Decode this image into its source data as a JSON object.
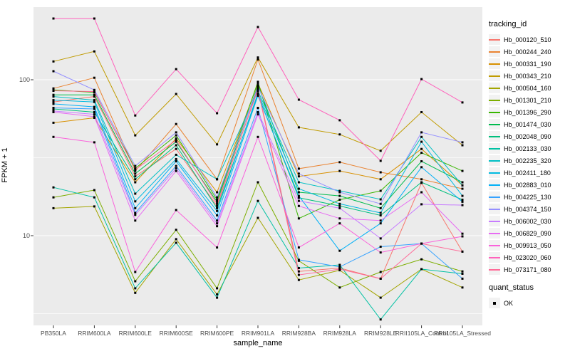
{
  "axes": {
    "ylabel": "FPKM + 1",
    "xlabel": "sample_name",
    "y_ticks": [
      {
        "label": "100",
        "value": 100
      },
      {
        "label": "10",
        "value": 10
      }
    ],
    "y_minor_ticks": [
      31.6,
      3.16
    ]
  },
  "legend": {
    "tracking_title": "tracking_id",
    "quant_title": "quant_status",
    "quant_items": [
      {
        "label": "OK",
        "marker": "black-square"
      }
    ]
  },
  "colors": {
    "panel_bg": "#EBEBEB",
    "grid_major": "#FFFFFF",
    "grid_minor": "#FFFFFF",
    "marker": "#000000",
    "axis_text": "#4D4D4D",
    "tick_mark": "#333333",
    "legend_key_bg": "#F2F2F2"
  },
  "chart_data": {
    "type": "line",
    "title": "",
    "xlabel": "sample_name",
    "ylabel": "FPKM + 1",
    "yscale": "log10",
    "ylim": [
      2.7,
      290
    ],
    "grid": true,
    "legend_position": "right",
    "marker": "black-square",
    "quant_status": "OK",
    "categories": [
      "PB350LA",
      "RRIM600LA",
      "RRIM600LE",
      "RRIM600SE",
      "RRIM600PE",
      "RRIM901LA",
      "RRIM928BA",
      "RRIM928LA",
      "RRIM928LE",
      "RRII105LA_Control",
      "RRII105LA_Stressed"
    ],
    "series": [
      {
        "name": "Hb_000120_510",
        "color": "#F8766D",
        "values": [
          72,
          78,
          24,
          36,
          15.5,
          88,
          5.9,
          6.2,
          5.3,
          21.8,
          7.9
        ]
      },
      {
        "name": "Hb_000244_240",
        "color": "#EA8331",
        "values": [
          88,
          103,
          26,
          52,
          23,
          135,
          26.9,
          29.6,
          25.5,
          23,
          20
        ]
      },
      {
        "name": "Hb_000331_190",
        "color": "#D89000",
        "values": [
          53,
          57,
          22,
          42,
          19,
          95,
          24,
          26,
          23,
          36,
          21
        ]
      },
      {
        "name": "Hb_000343_210",
        "color": "#C09B00",
        "values": [
          131,
          152,
          44,
          81,
          38.5,
          139,
          49.5,
          44.6,
          35,
          62,
          38
        ]
      },
      {
        "name": "Hb_000504_160",
        "color": "#A3A500",
        "values": [
          15,
          15.4,
          4.3,
          9.5,
          4.2,
          13,
          5.2,
          6.0,
          4.0,
          6.1,
          4.65
        ]
      },
      {
        "name": "Hb_001301_210",
        "color": "#7CAE00",
        "values": [
          17.6,
          19.6,
          5.1,
          10.9,
          4.6,
          22,
          6.9,
          4.65,
          5.85,
          7.05,
          5.9
        ]
      },
      {
        "name": "Hb_001396_290",
        "color": "#39B600",
        "values": [
          86,
          83,
          27,
          44,
          17,
          97,
          12.9,
          17,
          19.4,
          34,
          26
        ]
      },
      {
        "name": "Hb_001474_030",
        "color": "#00BB4E",
        "values": [
          80,
          80,
          25,
          40,
          16.5,
          92,
          19,
          18,
          15,
          30,
          22
        ]
      },
      {
        "name": "Hb_002048_090",
        "color": "#00BF7D",
        "values": [
          65,
          62,
          23,
          38,
          15,
          80,
          17.5,
          15.5,
          13.5,
          22,
          17
        ]
      },
      {
        "name": "Hb_002133_030",
        "color": "#00C1A3",
        "values": [
          20.4,
          17.6,
          4.6,
          9.0,
          4.0,
          16.7,
          6.2,
          6.5,
          2.9,
          6.1,
          5.7
        ]
      },
      {
        "name": "Hb_002235_320",
        "color": "#00BFC4",
        "values": [
          78,
          74,
          18.6,
          33,
          23,
          85,
          22,
          19.4,
          17.1,
          43,
          21
        ]
      },
      {
        "name": "Hb_002411_180",
        "color": "#00BAE0",
        "values": [
          74,
          72,
          16.6,
          31,
          14.4,
          82,
          20,
          16,
          14,
          40,
          18
        ]
      },
      {
        "name": "Hb_002883_010",
        "color": "#00B0F6",
        "values": [
          70,
          67,
          15,
          30,
          13.5,
          79,
          18,
          8.0,
          12,
          27.5,
          16.5
        ]
      },
      {
        "name": "Hb_004225_130",
        "color": "#35A2FF",
        "values": [
          66,
          65,
          14,
          28,
          12.5,
          66,
          7.0,
          6.3,
          8.5,
          8.9,
          5.3
        ]
      },
      {
        "name": "Hb_004374_150",
        "color": "#9590FF",
        "values": [
          113.5,
          86,
          28,
          46,
          17.6,
          90,
          25,
          19,
          16,
          46,
          39.7
        ]
      },
      {
        "name": "Hb_006002_030",
        "color": "#C77CFF",
        "values": [
          63,
          60,
          13.6,
          27,
          12,
          62,
          16.7,
          15,
          9.6,
          15.9,
          15.7
        ]
      },
      {
        "name": "Hb_006829_090",
        "color": "#E76BF3",
        "values": [
          62,
          58,
          12.5,
          26,
          11.5,
          60,
          15.5,
          12.9,
          12.5,
          19,
          10.3
        ]
      },
      {
        "name": "Hb_009913_050",
        "color": "#FA62DB",
        "values": [
          43,
          39.7,
          5.85,
          14.6,
          8.4,
          43,
          8.4,
          12,
          7.8,
          8.9,
          9.9
        ]
      },
      {
        "name": "Hb_023020_060",
        "color": "#FF62BC",
        "values": [
          247,
          247,
          59,
          117,
          61,
          218,
          74.5,
          55,
          30.2,
          101,
          71.5
        ]
      },
      {
        "name": "Hb_073171_080",
        "color": "#FF6A98",
        "values": [
          85,
          84,
          26.5,
          41,
          16,
          86,
          5.6,
          6.1,
          5.3,
          8.9,
          7.9
        ]
      }
    ]
  }
}
